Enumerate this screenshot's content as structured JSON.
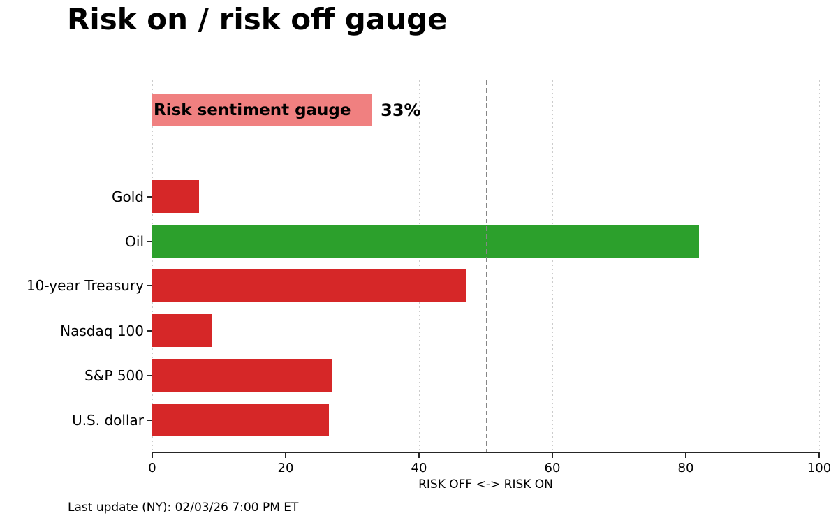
{
  "title": "Risk on / risk off gauge",
  "gauge": {
    "label": "Risk sentiment gauge",
    "value": 33,
    "value_label": "33%"
  },
  "chart_data": {
    "type": "bar",
    "orientation": "horizontal",
    "title": "Risk on / risk off gauge",
    "categories": [
      "Gold",
      "Oil",
      "10-year Treasury",
      "Nasdaq 100",
      "S&P 500",
      "U.S. dollar"
    ],
    "values": [
      7,
      82,
      47,
      9,
      27,
      26.5
    ],
    "bar_colors": [
      "#d62728",
      "#2ca02c",
      "#d62728",
      "#d62728",
      "#d62728",
      "#d62728"
    ],
    "gauge_bar": {
      "label": "Risk sentiment gauge",
      "value": 33,
      "color": "#f08080"
    },
    "xlabel": "RISK OFF <-> RISK ON",
    "xlim": [
      0,
      100
    ],
    "xticks": [
      0,
      20,
      40,
      60,
      80,
      100
    ],
    "xtick_labels": [
      "0",
      "20",
      "40",
      "60",
      "80",
      "100"
    ],
    "reference_line": 50,
    "grid": "vertical dotted at each x tick",
    "legend": "none"
  },
  "footer": {
    "last_update": "Last update (NY): 02/03/26 7:00 PM ET"
  },
  "colors": {
    "risk_off_red": "#d62728",
    "risk_on_green": "#2ca02c",
    "gauge_pink": "#f08080",
    "reference_line_gray": "#868686",
    "grid_gray": "#cccccc",
    "axis_dark": "#262626",
    "text": "#000000",
    "background": "#ffffff"
  }
}
